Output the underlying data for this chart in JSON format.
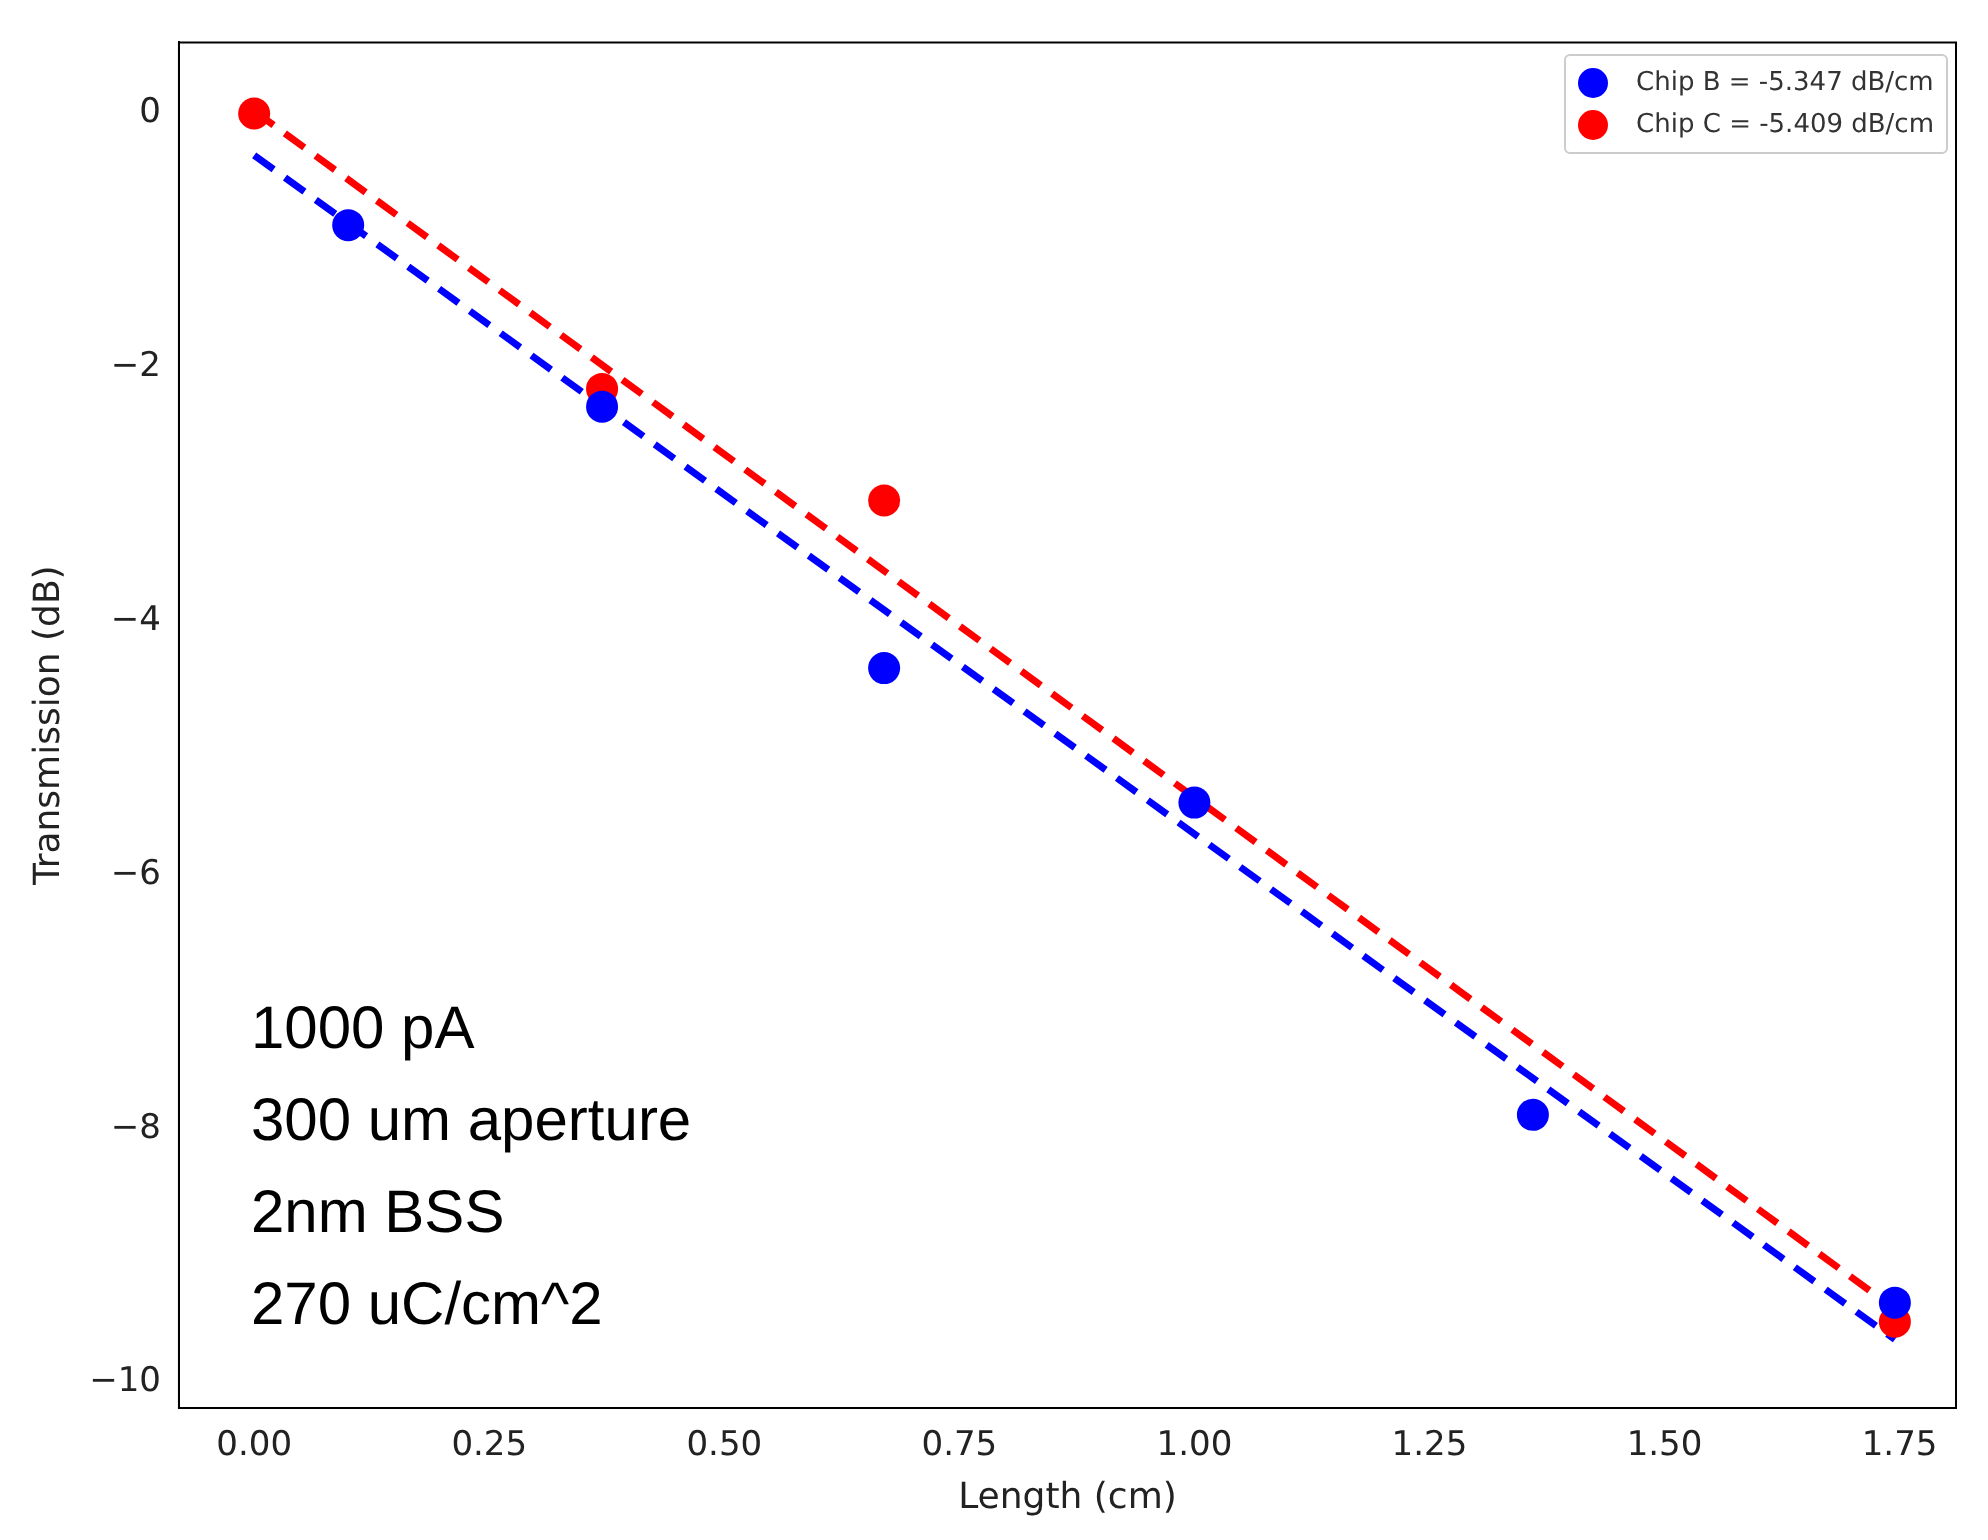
{
  "chart_data": {
    "type": "scatter",
    "xlabel": "Length (cm)",
    "ylabel": "Transmission (dB)",
    "xlim": [
      -0.08,
      1.81
    ],
    "ylim": [
      -10.2,
      0.56
    ],
    "xticks": [
      {
        "value": 0,
        "label": "0.00"
      },
      {
        "value": 0.25,
        "label": "0.25"
      },
      {
        "value": 0.5,
        "label": "0.50"
      },
      {
        "value": 0.75,
        "label": "0.75"
      },
      {
        "value": 1,
        "label": "1.00"
      },
      {
        "value": 1.25,
        "label": "1.25"
      },
      {
        "value": 1.5,
        "label": "1.50"
      },
      {
        "value": 1.75,
        "label": "1.75"
      }
    ],
    "yticks": [
      {
        "value": -10,
        "label": "−10"
      },
      {
        "value": -8,
        "label": "−8"
      },
      {
        "value": -6,
        "label": "−6"
      },
      {
        "value": -4,
        "label": "−4"
      },
      {
        "value": -2,
        "label": "−2"
      },
      0
    ],
    "grid": false,
    "legend": "top right",
    "marker": "circle",
    "series": [
      {
        "type": "line",
        "color": "#0000ff",
        "line_style": "dashed",
        "marker": "none",
        "x": [
          0,
          1.745
        ],
        "values": [
          -0.33,
          -9.66
        ]
      },
      {
        "type": "line",
        "color": "#ff0000",
        "line_style": "dashed",
        "marker": "none",
        "x": [
          0,
          1.745
        ],
        "values": [
          0.02,
          -9.42
        ]
      },
      {
        "name": "Chip B = -5.347 dB/cm",
        "color": "#0000ff",
        "x": [
          0.1,
          0.37,
          0.67,
          1.0,
          1.36,
          1.745
        ],
        "values": [
          -0.88,
          -2.31,
          -4.37,
          -5.43,
          -7.89,
          -9.37
        ]
      },
      {
        "name": "Chip C = -5.409 dB/cm",
        "color": "#ff0000",
        "x": [
          0,
          0.37,
          0.67,
          1.745
        ],
        "values": [
          0,
          -2.17,
          -3.05,
          -9.52
        ]
      }
    ],
    "annotations": [
      "1000 pA",
      "300 um aperture",
      "2nm BSS",
      "270 uC/cm^2"
    ]
  }
}
